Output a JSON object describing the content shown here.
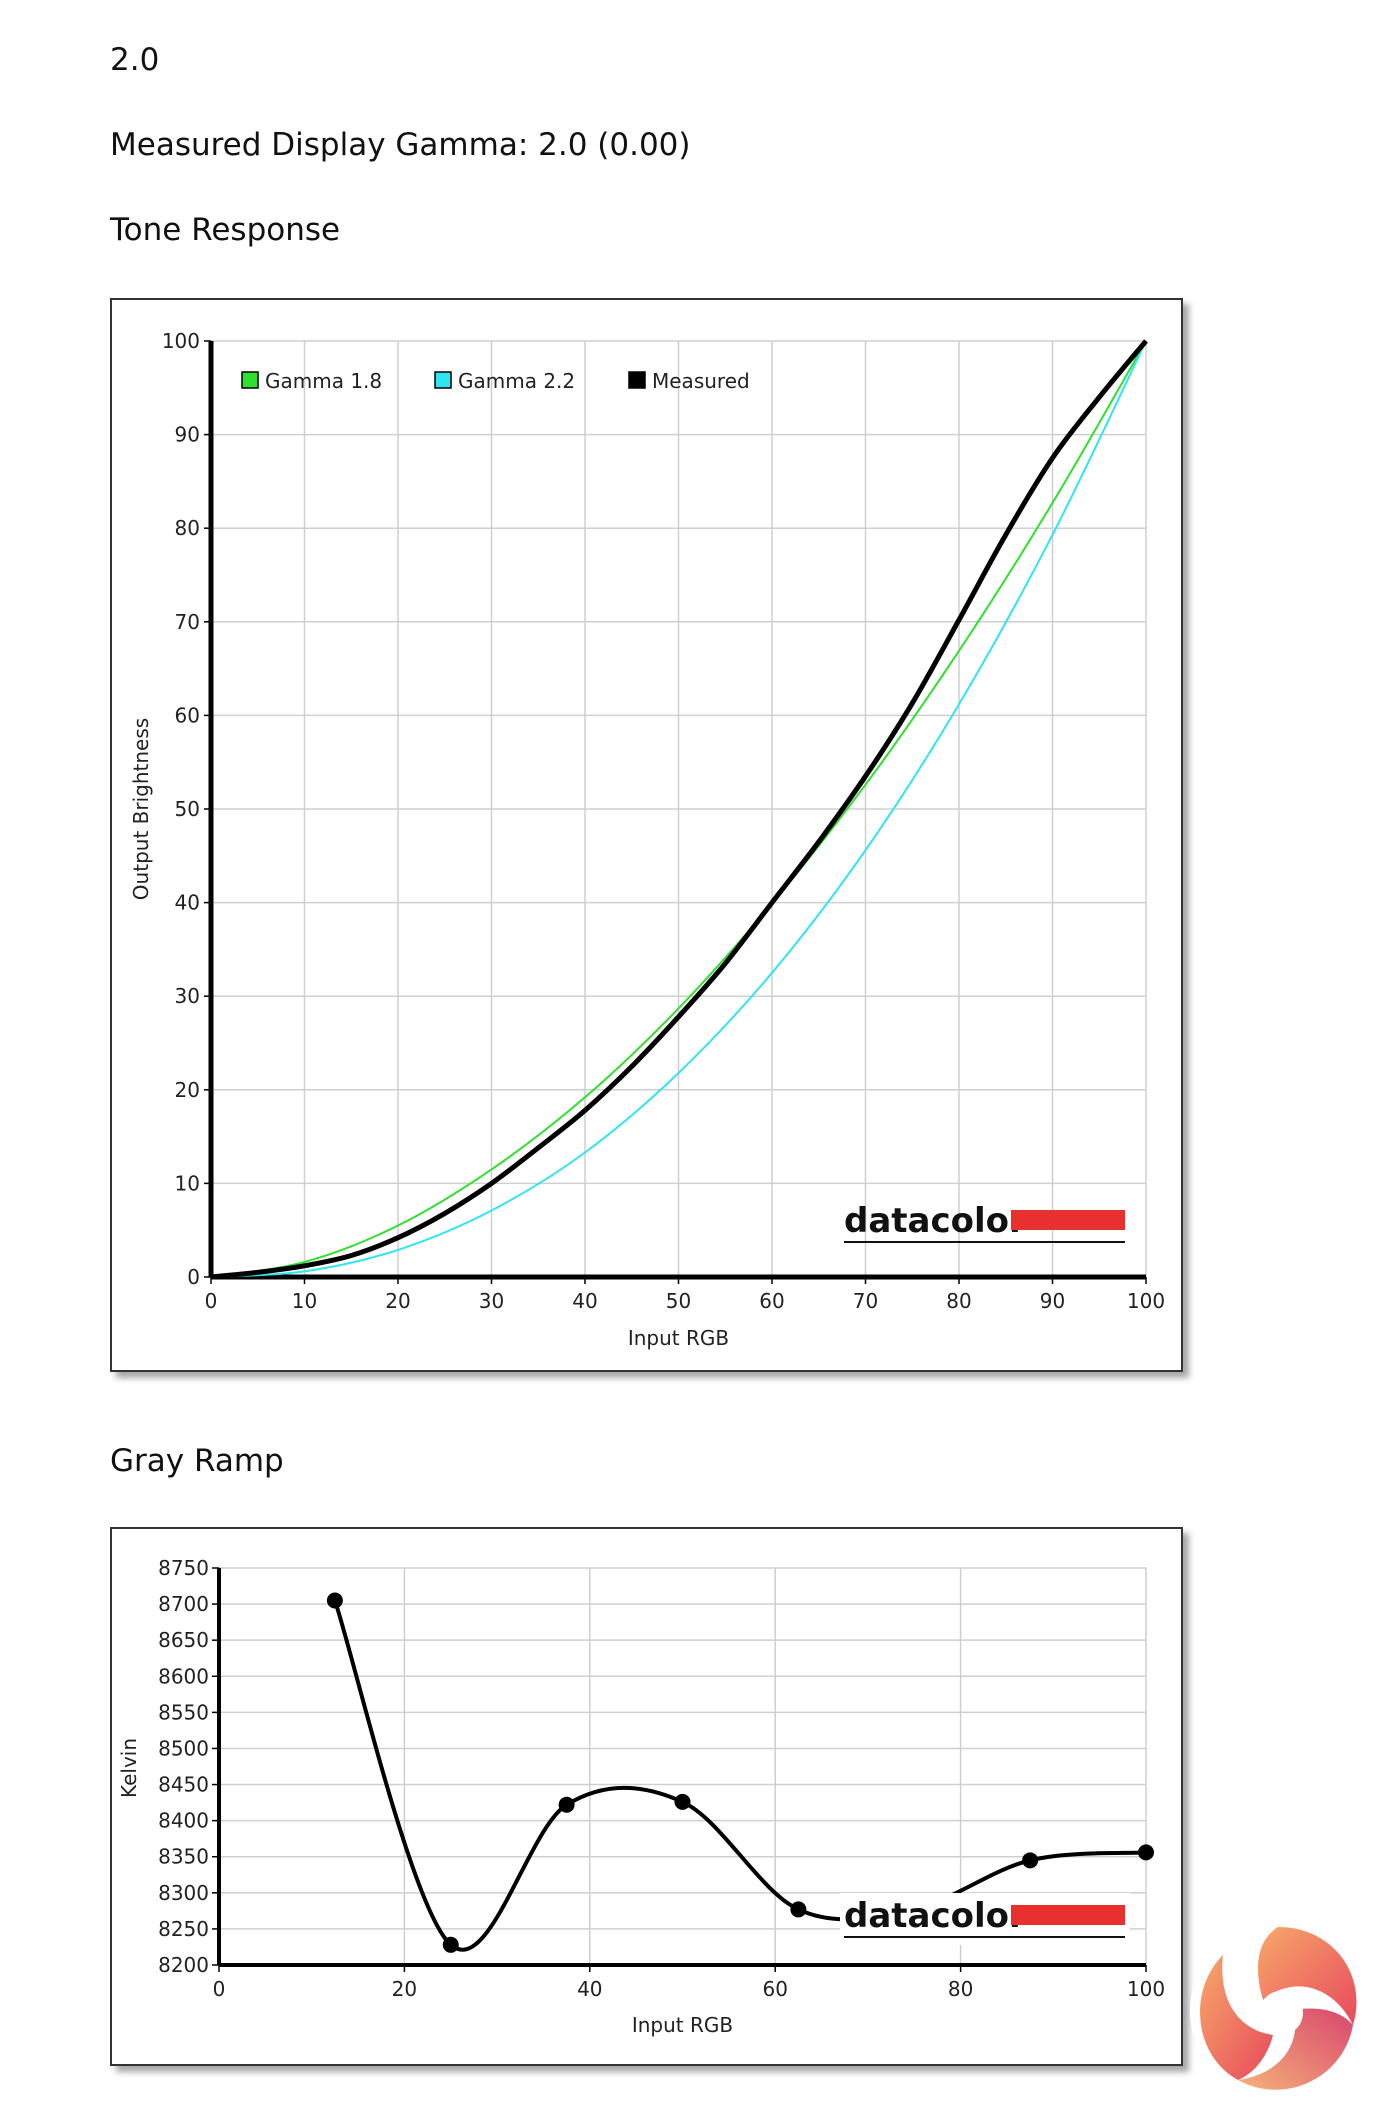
{
  "header": {
    "gamma_target": "2.0",
    "measured_gamma": "Measured Display Gamma: 2.0 (0.00)",
    "tone_title": "Tone Response",
    "gray_title": "Gray Ramp"
  },
  "watermark": {
    "brand": "datacolor",
    "brand_color": "#e8302f"
  },
  "chart_data": [
    {
      "type": "line",
      "title": "Tone Response",
      "xlabel": "Input RGB",
      "ylabel": "Output Brightness",
      "xlim": [
        0,
        100
      ],
      "ylim": [
        0,
        100
      ],
      "xticks": [
        0,
        10,
        20,
        30,
        40,
        50,
        60,
        70,
        80,
        90,
        100
      ],
      "yticks": [
        0,
        10,
        20,
        30,
        40,
        50,
        60,
        70,
        80,
        90,
        100
      ],
      "grid": true,
      "legend": "top-left",
      "series": [
        {
          "name": "Gamma 1.8",
          "color": "#2fe02f",
          "x": [
            0,
            10,
            20,
            30,
            40,
            50,
            60,
            70,
            80,
            90,
            100
          ],
          "y": [
            0,
            1.6,
            5.5,
            11.5,
            19.2,
            28.7,
            39.9,
            52.6,
            66.9,
            82.7,
            100
          ]
        },
        {
          "name": "Gamma 2.2",
          "color": "#2fe6f0",
          "x": [
            0,
            10,
            20,
            30,
            40,
            50,
            60,
            70,
            80,
            90,
            100
          ],
          "y": [
            0,
            0.6,
            2.9,
            7.1,
            13.3,
            21.8,
            32.5,
            45.6,
            61.2,
            79.3,
            100
          ]
        },
        {
          "name": "Measured",
          "color": "#000000",
          "x": [
            0,
            5,
            10,
            15,
            20,
            25,
            30,
            35,
            40,
            45,
            50,
            55,
            60,
            65,
            70,
            75,
            80,
            85,
            90,
            95,
            100
          ],
          "y": [
            0,
            0.5,
            1.2,
            2.3,
            4.2,
            6.8,
            10.0,
            13.8,
            17.8,
            22.5,
            27.8,
            33.5,
            40.0,
            46.5,
            53.5,
            61.3,
            70.2,
            79.3,
            87.5,
            94.0,
            100
          ]
        }
      ]
    },
    {
      "type": "line",
      "title": "Gray Ramp",
      "xlabel": "Input RGB",
      "ylabel": "Kelvin",
      "xlim": [
        0,
        100
      ],
      "ylim": [
        8200,
        8750
      ],
      "xticks": [
        0,
        20,
        40,
        60,
        80,
        100
      ],
      "yticks": [
        8200,
        8250,
        8300,
        8350,
        8400,
        8450,
        8500,
        8550,
        8600,
        8650,
        8700,
        8750
      ],
      "grid": true,
      "series": [
        {
          "color": "#000000",
          "x": [
            12.5,
            25,
            37.5,
            50,
            62.5,
            75,
            87.5,
            100
          ],
          "y": [
            8705,
            8228,
            8422,
            8426,
            8277,
            8278,
            8345,
            8356
          ]
        }
      ]
    }
  ]
}
